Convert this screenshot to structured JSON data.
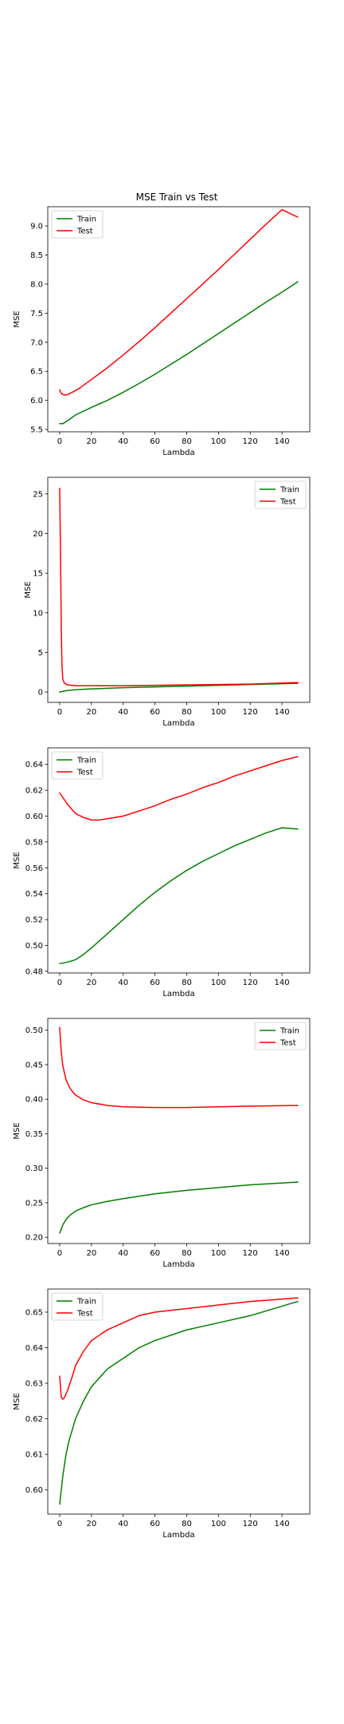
{
  "figure": {
    "title": "MSE Train vs Test"
  },
  "colors": {
    "train": "#008000",
    "test": "#ff0000",
    "axes": "#000000",
    "background": "#ffffff"
  },
  "chart_data": [
    {
      "type": "line",
      "title": "MSE Train vs Test",
      "xlabel": "Lambda",
      "ylabel": "MSE",
      "xlim": [
        -7.5,
        157.5
      ],
      "ylim": [
        5.46,
        9.33
      ],
      "xticks": [
        0,
        20,
        40,
        60,
        80,
        100,
        120,
        140
      ],
      "yticks": [
        5.5,
        6.0,
        6.5,
        7.0,
        7.5,
        8.0,
        8.5,
        9.0
      ],
      "ytick_labels": [
        "5.5",
        "6.0",
        "6.5",
        "7.0",
        "7.5",
        "8.0",
        "8.5",
        "9.0"
      ],
      "legend": "upper-left",
      "grid": false,
      "series": [
        {
          "name": "Train",
          "color": "#008000",
          "x": [
            0,
            2,
            5,
            10,
            20,
            30,
            40,
            50,
            60,
            70,
            80,
            90,
            100,
            110,
            120,
            130,
            140,
            150
          ],
          "y": [
            5.6,
            5.6,
            5.65,
            5.75,
            5.88,
            6.0,
            6.14,
            6.29,
            6.45,
            6.62,
            6.79,
            6.97,
            7.15,
            7.33,
            7.51,
            7.69,
            7.86,
            8.04
          ]
        },
        {
          "name": "Test",
          "color": "#ff0000",
          "x": [
            0,
            1,
            3,
            5,
            8,
            12,
            20,
            30,
            40,
            50,
            60,
            70,
            80,
            90,
            100,
            110,
            120,
            130,
            140,
            150
          ],
          "y": [
            6.18,
            6.12,
            6.09,
            6.1,
            6.14,
            6.2,
            6.36,
            6.56,
            6.78,
            7.01,
            7.25,
            7.5,
            7.75,
            8.0,
            8.25,
            8.51,
            8.77,
            9.03,
            9.28,
            9.15
          ]
        }
      ]
    },
    {
      "type": "line",
      "title": "",
      "xlabel": "Lambda",
      "ylabel": "MSE",
      "xlim": [
        -7.5,
        157.5
      ],
      "ylim": [
        -1.3,
        27.1
      ],
      "xticks": [
        0,
        20,
        40,
        60,
        80,
        100,
        120,
        140
      ],
      "yticks": [
        0,
        5,
        10,
        15,
        20,
        25
      ],
      "ytick_labels": [
        "0",
        "5",
        "10",
        "15",
        "20",
        "25"
      ],
      "legend": "upper-right",
      "grid": false,
      "series": [
        {
          "name": "Train",
          "color": "#008000",
          "x": [
            0,
            2,
            5,
            10,
            20,
            40,
            60,
            80,
            100,
            120,
            150
          ],
          "y": [
            0.0,
            0.1,
            0.2,
            0.3,
            0.4,
            0.55,
            0.65,
            0.75,
            0.85,
            0.95,
            1.1
          ]
        },
        {
          "name": "Test",
          "color": "#ff0000",
          "x": [
            0,
            0.5,
            1,
            1.5,
            2,
            3,
            5,
            10,
            20,
            40,
            60,
            80,
            100,
            120,
            150
          ],
          "y": [
            25.7,
            18.0,
            8.0,
            3.0,
            1.6,
            1.1,
            0.9,
            0.8,
            0.8,
            0.8,
            0.85,
            0.9,
            0.95,
            1.0,
            1.2
          ]
        }
      ]
    },
    {
      "type": "line",
      "title": "",
      "xlabel": "Lambda",
      "ylabel": "MSE",
      "xlim": [
        -7.5,
        157.5
      ],
      "ylim": [
        0.4787,
        0.6528
      ],
      "xticks": [
        0,
        20,
        40,
        60,
        80,
        100,
        120,
        140
      ],
      "yticks": [
        0.48,
        0.5,
        0.52,
        0.54,
        0.56,
        0.58,
        0.6,
        0.62,
        0.64
      ],
      "ytick_labels": [
        "0.48",
        "0.50",
        "0.52",
        "0.54",
        "0.56",
        "0.58",
        "0.60",
        "0.62",
        "0.64"
      ],
      "legend": "upper-left",
      "grid": false,
      "series": [
        {
          "name": "Train",
          "color": "#008000",
          "x": [
            0,
            5,
            10,
            15,
            20,
            30,
            40,
            50,
            60,
            70,
            80,
            90,
            100,
            110,
            120,
            130,
            140,
            150
          ],
          "y": [
            0.486,
            0.487,
            0.489,
            0.493,
            0.498,
            0.509,
            0.52,
            0.531,
            0.541,
            0.55,
            0.558,
            0.565,
            0.571,
            0.577,
            0.582,
            0.587,
            0.591,
            0.59
          ]
        },
        {
          "name": "Test",
          "color": "#ff0000",
          "x": [
            0,
            5,
            10,
            15,
            20,
            25,
            30,
            40,
            50,
            60,
            70,
            80,
            90,
            100,
            110,
            120,
            130,
            140,
            150
          ],
          "y": [
            0.618,
            0.609,
            0.602,
            0.599,
            0.597,
            0.597,
            0.598,
            0.6,
            0.604,
            0.608,
            0.613,
            0.617,
            0.622,
            0.626,
            0.631,
            0.635,
            0.639,
            0.643,
            0.646
          ]
        }
      ]
    },
    {
      "type": "line",
      "title": "",
      "xlabel": "Lambda",
      "ylabel": "MSE",
      "xlim": [
        -7.5,
        157.5
      ],
      "ylim": [
        0.191,
        0.517
      ],
      "xticks": [
        0,
        20,
        40,
        60,
        80,
        100,
        120,
        140
      ],
      "yticks": [
        0.2,
        0.25,
        0.3,
        0.35,
        0.4,
        0.45,
        0.5
      ],
      "ytick_labels": [
        "0.20",
        "0.25",
        "0.30",
        "0.35",
        "0.40",
        "0.45",
        "0.50"
      ],
      "legend": "upper-right",
      "grid": false,
      "series": [
        {
          "name": "Train",
          "color": "#008000",
          "x": [
            0,
            1,
            2,
            4,
            7,
            10,
            15,
            20,
            30,
            40,
            60,
            80,
            100,
            120,
            150
          ],
          "y": [
            0.206,
            0.212,
            0.218,
            0.226,
            0.233,
            0.238,
            0.243,
            0.247,
            0.252,
            0.256,
            0.263,
            0.268,
            0.272,
            0.276,
            0.28
          ]
        },
        {
          "name": "Test",
          "color": "#ff0000",
          "x": [
            0,
            1,
            2,
            4,
            6,
            8,
            10,
            15,
            20,
            30,
            40,
            60,
            80,
            100,
            120,
            150
          ],
          "y": [
            0.504,
            0.468,
            0.448,
            0.428,
            0.418,
            0.411,
            0.406,
            0.399,
            0.395,
            0.391,
            0.389,
            0.388,
            0.388,
            0.389,
            0.39,
            0.391
          ]
        }
      ]
    },
    {
      "type": "line",
      "title": "",
      "xlabel": "Lambda",
      "ylabel": "MSE",
      "xlim": [
        -7.5,
        157.5
      ],
      "ylim": [
        0.5932,
        0.6565
      ],
      "xticks": [
        0,
        20,
        40,
        60,
        80,
        100,
        120,
        140
      ],
      "yticks": [
        0.6,
        0.61,
        0.62,
        0.63,
        0.64,
        0.65
      ],
      "ytick_labels": [
        "0.60",
        "0.61",
        "0.62",
        "0.63",
        "0.64",
        "0.65"
      ],
      "legend": "upper-left",
      "grid": false,
      "series": [
        {
          "name": "Train",
          "color": "#008000",
          "x": [
            0,
            1,
            2,
            4,
            6,
            10,
            15,
            20,
            30,
            40,
            50,
            60,
            80,
            100,
            120,
            150
          ],
          "y": [
            0.596,
            0.6,
            0.604,
            0.61,
            0.614,
            0.62,
            0.625,
            0.629,
            0.634,
            0.637,
            0.64,
            0.642,
            0.645,
            0.647,
            0.649,
            0.653
          ]
        },
        {
          "name": "Test",
          "color": "#ff0000",
          "x": [
            0,
            1,
            2,
            3,
            5,
            8,
            10,
            15,
            20,
            30,
            40,
            50,
            60,
            80,
            100,
            120,
            150
          ],
          "y": [
            0.632,
            0.626,
            0.6255,
            0.626,
            0.628,
            0.632,
            0.635,
            0.639,
            0.642,
            0.645,
            0.647,
            0.649,
            0.65,
            0.651,
            0.652,
            0.653,
            0.654
          ]
        }
      ]
    }
  ]
}
